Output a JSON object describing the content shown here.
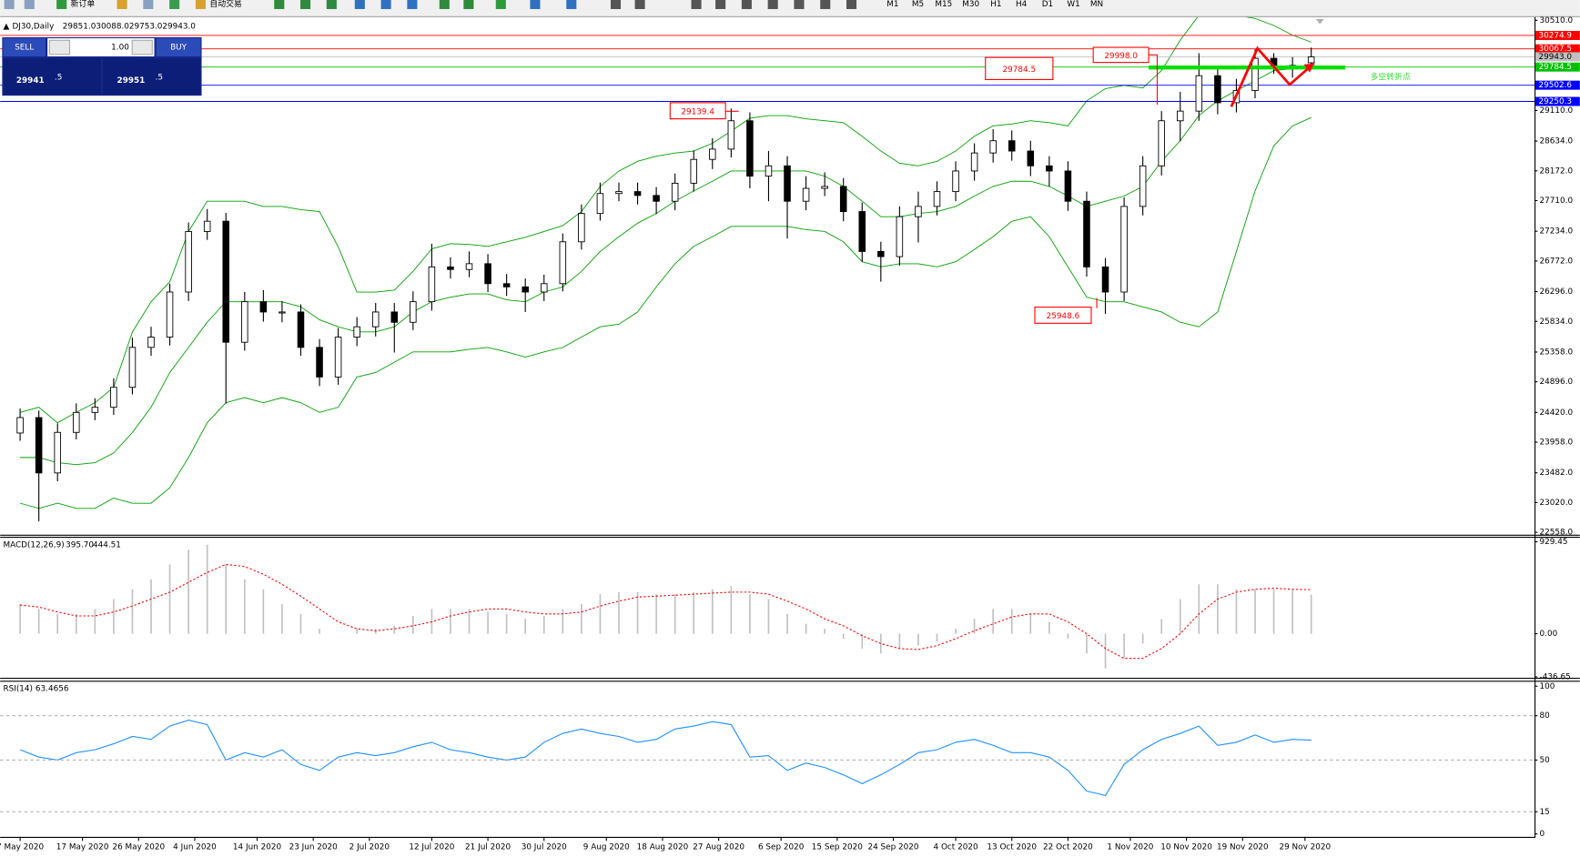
{
  "toolbar": {
    "buttons": [
      "新订单",
      "自动交易"
    ],
    "timeframes": [
      "M1",
      "M5",
      "M15",
      "M30",
      "H1",
      "H4",
      "D1",
      "W1",
      "MN"
    ]
  },
  "trade_panel": {
    "sell": "SELL",
    "lot": "1.00",
    "buy": "BUY",
    "bid": [
      "29941",
      ".5"
    ],
    "ask": [
      "29951",
      ".5"
    ]
  },
  "chart_data": [
    {
      "type": "candlestick",
      "symbol": "DJ30,Daily",
      "ohlc_labels": [
        "29851.0",
        "30088.0",
        "29753.0",
        "29943.0"
      ],
      "x": [
        0,
        3,
        6,
        9,
        12,
        15,
        18,
        21,
        24,
        27,
        30,
        33,
        36,
        39,
        42,
        45,
        48,
        51,
        54,
        57,
        60,
        63,
        66,
        69,
        72,
        75,
        78,
        81,
        84,
        87,
        90,
        93,
        96,
        99,
        102,
        105,
        108,
        111,
        114,
        117,
        120,
        123,
        126,
        129,
        132,
        135,
        138,
        141,
        144,
        147,
        150,
        153,
        156,
        159,
        162,
        165,
        168,
        171,
        174,
        177,
        180,
        183,
        186,
        189,
        192,
        195,
        198,
        201,
        204,
        207
      ],
      "open": [
        24100,
        24340,
        23480,
        24110,
        24420,
        24500,
        24810,
        25430,
        25590,
        26290,
        27230,
        27390,
        25510,
        26140,
        25980,
        25980,
        25430,
        24970,
        25590,
        25750,
        25980,
        25820,
        26140,
        26680,
        26640,
        26730,
        26420,
        26370,
        26290,
        26420,
        27070,
        27510,
        27820,
        27850,
        27790,
        27700,
        27980,
        28350,
        28510,
        28950,
        28090,
        28250,
        27700,
        27900,
        27930,
        27540,
        26920,
        26840,
        27460,
        27620,
        27850,
        28170,
        28450,
        28640,
        28480,
        28250,
        28170,
        27700,
        26680,
        26290,
        27620,
        28250,
        28950,
        29100,
        29650,
        29230,
        29420,
        29920,
        29810,
        29851
      ],
      "high": [
        24480,
        24450,
        24250,
        24560,
        24640,
        24950,
        25580,
        25750,
        26420,
        27370,
        27580,
        27520,
        26290,
        26320,
        26150,
        26100,
        25560,
        25730,
        25900,
        26120,
        26120,
        26300,
        27040,
        26830,
        26920,
        26880,
        26570,
        26500,
        26560,
        27200,
        27650,
        27990,
        27990,
        27990,
        27920,
        28130,
        28490,
        28680,
        29140,
        29080,
        28480,
        28400,
        28090,
        28150,
        28060,
        27680,
        27070,
        27620,
        27850,
        28010,
        28320,
        28600,
        28820,
        28800,
        28640,
        28400,
        28320,
        27850,
        26820,
        27760,
        28400,
        29100,
        29400,
        30000,
        29800,
        29600,
        30060,
        30000,
        29940,
        30088
      ],
      "low": [
        23980,
        22730,
        23350,
        24000,
        24300,
        24380,
        24700,
        25300,
        25460,
        26150,
        27100,
        24560,
        25380,
        25830,
        25820,
        25300,
        24830,
        24850,
        25450,
        25600,
        25350,
        25700,
        26000,
        26500,
        26520,
        26290,
        26230,
        25980,
        26150,
        26300,
        26950,
        27400,
        27700,
        27650,
        27500,
        27560,
        27850,
        28200,
        28380,
        27900,
        27700,
        27120,
        27560,
        27780,
        27390,
        26760,
        26450,
        26700,
        27060,
        27480,
        27700,
        28020,
        28300,
        28330,
        28090,
        27930,
        27550,
        26530,
        25950,
        26150,
        27480,
        28100,
        28630,
        28950,
        29050,
        29080,
        29300,
        29680,
        29620,
        29753
      ],
      "close": [
        24340,
        23480,
        24110,
        24420,
        24500,
        24810,
        25430,
        25590,
        26290,
        27230,
        27390,
        25510,
        26140,
        25980,
        25980,
        25430,
        24970,
        25590,
        25750,
        25980,
        25820,
        26140,
        26680,
        26640,
        26730,
        26420,
        26370,
        26290,
        26420,
        27070,
        27510,
        27820,
        27850,
        27790,
        27700,
        27980,
        28350,
        28510,
        28950,
        28090,
        28250,
        27700,
        27900,
        27930,
        27540,
        26920,
        26840,
        27460,
        27620,
        27850,
        28170,
        28450,
        28640,
        28480,
        28250,
        28170,
        27700,
        26680,
        26290,
        27620,
        28250,
        28950,
        29100,
        29650,
        29230,
        29420,
        29920,
        29810,
        29760,
        29943
      ],
      "series": [
        {
          "color": "#00a000",
          "values": [
            24420,
            24500,
            24260,
            24420,
            24570,
            24810,
            25670,
            26140,
            26450,
            27230,
            27700,
            27700,
            27700,
            27620,
            27620,
            27570,
            27540,
            26990,
            26290,
            26290,
            26320,
            26610,
            26960,
            27040,
            27030,
            27000,
            27070,
            27140,
            27230,
            27320,
            27540,
            27930,
            28170,
            28320,
            28400,
            28450,
            28480,
            28600,
            28790,
            28990,
            29030,
            29030,
            28980,
            28950,
            28920,
            28710,
            28480,
            28290,
            28250,
            28320,
            28480,
            28710,
            28870,
            28900,
            28950,
            28920,
            28870,
            29260,
            29450,
            29500,
            29460,
            29730,
            30200,
            30590,
            30740,
            30590,
            30540,
            30430,
            30280,
            30170
          ]
        },
        {
          "color": "#00a000",
          "values": [
            23720,
            23720,
            23640,
            23610,
            23640,
            23790,
            24110,
            24500,
            25040,
            25430,
            25820,
            26140,
            26140,
            26140,
            26140,
            26060,
            25860,
            25750,
            25670,
            25670,
            25750,
            25980,
            26140,
            26210,
            26260,
            26260,
            26170,
            26140,
            26290,
            26370,
            26610,
            26920,
            27150,
            27360,
            27510,
            27700,
            27860,
            28010,
            28170,
            28170,
            28170,
            28170,
            28170,
            28090,
            27930,
            27700,
            27460,
            27460,
            27510,
            27540,
            27620,
            27780,
            27930,
            28010,
            28010,
            27930,
            27780,
            27620,
            27700,
            27780,
            27930,
            28320,
            28640,
            29030,
            29260,
            29420,
            29570,
            29730,
            29760,
            29810
          ]
        },
        {
          "color": "#00a000",
          "values": [
            23010,
            22930,
            23010,
            22930,
            22930,
            23090,
            23010,
            23010,
            23250,
            23720,
            24260,
            24570,
            24650,
            24570,
            24650,
            24570,
            24420,
            24500,
            24970,
            25040,
            25200,
            25360,
            25360,
            25360,
            25400,
            25430,
            25360,
            25280,
            25360,
            25430,
            25590,
            25750,
            25790,
            25980,
            26370,
            26730,
            27000,
            27150,
            27310,
            27310,
            27310,
            27310,
            27260,
            27230,
            27070,
            26760,
            26680,
            26730,
            26730,
            26680,
            26760,
            26950,
            27150,
            27390,
            27460,
            27150,
            26680,
            26210,
            26140,
            26140,
            26060,
            25980,
            25820,
            25750,
            25980,
            26920,
            27860,
            28560,
            28870,
            29000
          ]
        }
      ],
      "levels": [
        {
          "value": 30274.9,
          "color": "#ff0000"
        },
        {
          "value": 30067.5,
          "color": "#ff0000"
        },
        {
          "value": 29943,
          "label": "29943.0",
          "color": "#c0c0c0"
        },
        {
          "value": 29784.5,
          "color": "#00c000"
        },
        {
          "value": 29502.6,
          "color": "#0000ff"
        },
        {
          "value": 29250.3,
          "color": "#0000ff"
        }
      ],
      "annotations": [
        "29998.0",
        "29139.4",
        "25948.6",
        "29784.5"
      ],
      "note": "多空转折点",
      "xlim": [
        -3.2,
        242.8
      ],
      "xticks": [
        {
          "value": 0,
          "label": "7 May 2020"
        },
        {
          "value": 10,
          "label": "17 May 2020"
        },
        {
          "value": 19,
          "label": "26 May 2020"
        },
        {
          "value": 28,
          "label": "4 Jun 2020"
        },
        {
          "value": 38,
          "label": "14 Jun 2020"
        },
        {
          "value": 47,
          "label": "23 Jun 2020"
        },
        {
          "value": 56,
          "label": "2 Jul 2020"
        },
        {
          "value": 66,
          "label": "12 Jul 2020"
        },
        {
          "value": 75,
          "label": "21 Jul 2020"
        },
        {
          "value": 84,
          "label": "30 Jul 2020"
        },
        {
          "value": 94,
          "label": "9 Aug 2020"
        },
        {
          "value": 103,
          "label": "18 Aug 2020"
        },
        {
          "value": 112,
          "label": "27 Aug 2020"
        },
        {
          "value": 122,
          "label": "6 Sep 2020"
        },
        {
          "value": 131,
          "label": "15 Sep 2020"
        },
        {
          "value": 140,
          "label": "24 Sep 2020"
        },
        {
          "value": 150,
          "label": "4 Oct 2020"
        },
        {
          "value": 159,
          "label": "13 Oct 2020"
        },
        {
          "value": 168,
          "label": "22 Oct 2020"
        },
        {
          "value": 178,
          "label": "1 Nov 2020"
        },
        {
          "value": 187,
          "label": "10 Nov 2020"
        },
        {
          "value": 196,
          "label": "19 Nov 2020"
        },
        {
          "value": 206,
          "label": "29 Nov 2020"
        }
      ],
      "ylim": [
        22520,
        30560
      ],
      "yticks": [
        {
          "value": 30510,
          "label": "30510.0"
        },
        {
          "value": 29110,
          "label": "29110.0"
        },
        {
          "value": 28634,
          "label": "28634.0"
        },
        {
          "value": 28172,
          "label": "28172.0"
        },
        {
          "value": 27710,
          "label": "27710.0"
        },
        {
          "value": 27234,
          "label": "27234.0"
        },
        {
          "value": 26772,
          "label": "26772.0"
        },
        {
          "value": 26296,
          "label": "26296.0"
        },
        {
          "value": 25834,
          "label": "25834.0"
        },
        {
          "value": 25358,
          "label": "25358.0"
        },
        {
          "value": 24896,
          "label": "24896.0"
        },
        {
          "value": 24420,
          "label": "24420.0"
        },
        {
          "value": 23958,
          "label": "23958.0"
        },
        {
          "value": 23482,
          "label": "23482.0"
        },
        {
          "value": 23020,
          "label": "23020.0"
        },
        {
          "value": 22558,
          "label": "22558.0"
        }
      ]
    },
    {
      "type": "macd",
      "title": "MACD(12,26,9)",
      "last_labels": [
        "395.70",
        "444.51"
      ],
      "series": [
        {
          "type": "bar",
          "color": "#c0c0c0",
          "values": [
            300,
            250,
            200,
            200,
            250,
            350,
            450,
            550,
            700,
            850,
            900,
            700,
            550,
            450,
            300,
            200,
            50,
            0,
            50,
            50,
            80,
            180,
            250,
            250,
            250,
            220,
            200,
            150,
            180,
            250,
            300,
            400,
            420,
            420,
            400,
            400,
            420,
            450,
            480,
            400,
            350,
            200,
            100,
            50,
            -50,
            -150,
            -200,
            -150,
            -120,
            -80,
            50,
            150,
            250,
            250,
            200,
            120,
            -50,
            -200,
            -350,
            -250,
            -100,
            150,
            350,
            500,
            500,
            450,
            450,
            450,
            450,
            395.7
          ]
        },
        {
          "type": "line",
          "color": "#ff0000",
          "values": [
            290,
            270,
            220,
            180,
            180,
            220,
            280,
            350,
            420,
            520,
            620,
            700,
            680,
            600,
            500,
            380,
            250,
            120,
            50,
            30,
            50,
            80,
            120,
            180,
            220,
            250,
            250,
            220,
            200,
            200,
            220,
            280,
            330,
            370,
            380,
            390,
            400,
            410,
            420,
            420,
            400,
            330,
            250,
            150,
            80,
            -20,
            -100,
            -150,
            -160,
            -120,
            -50,
            30,
            100,
            170,
            200,
            200,
            120,
            0,
            -150,
            -250,
            -250,
            -150,
            0,
            200,
            350,
            420,
            450,
            460,
            450,
            444.51
          ]
        }
      ],
      "ylim": [
        -445,
        970
      ],
      "yticks": [
        929.45,
        {
          "value": 0,
          "label": "0.00"
        },
        -436.65
      ]
    },
    {
      "type": "line",
      "title": "RSI(14)",
      "last_label": "63.4656",
      "color": "#1e90ff",
      "values": [
        57,
        52,
        50,
        55,
        57,
        61,
        66,
        64,
        73,
        77,
        74,
        50,
        55,
        52,
        57,
        47,
        43,
        52,
        55,
        53,
        55,
        59,
        62,
        57,
        55,
        52,
        50,
        52,
        62,
        68,
        71,
        68,
        66,
        62,
        64,
        71,
        73,
        76,
        74,
        52,
        53,
        43,
        48,
        45,
        40,
        34,
        40,
        47,
        55,
        57,
        62,
        64,
        60,
        55,
        55,
        52,
        43,
        29,
        26,
        47,
        57,
        64,
        68,
        73,
        60,
        62,
        67,
        62,
        64,
        63.4656
      ],
      "ylim": [
        -2,
        103
      ],
      "yticks": [
        100,
        80,
        50,
        15,
        0
      ]
    }
  ]
}
